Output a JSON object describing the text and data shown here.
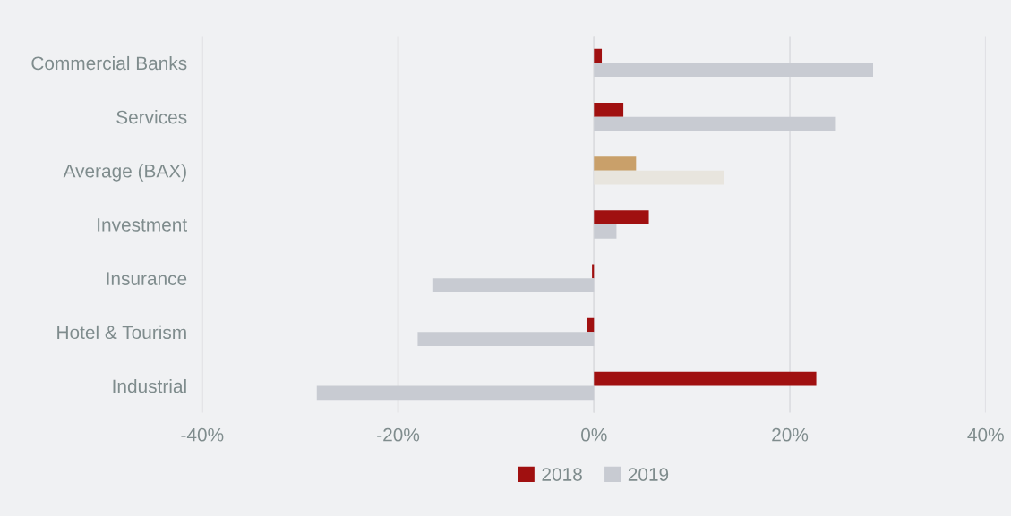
{
  "chart_data": {
    "type": "bar",
    "orientation": "horizontal",
    "categories": [
      "Commercial Banks",
      "Services",
      "Average (BAX)",
      "Investment",
      "Insurance",
      "Hotel & Tourism",
      "Industrial"
    ],
    "series": [
      {
        "name": "2018",
        "color": "#a01010",
        "colors": [
          "#a01010",
          "#a01010",
          "#c9a06a",
          "#a01010",
          "#a01010",
          "#a01010",
          "#a01010"
        ],
        "values": [
          0.8,
          3.0,
          4.3,
          5.6,
          -0.2,
          -0.7,
          22.7
        ]
      },
      {
        "name": "2019",
        "color": "#c8cbd2",
        "colors": [
          "#c8cbd2",
          "#c8cbd2",
          "#e8e5de",
          "#c8cbd2",
          "#c8cbd2",
          "#c8cbd2",
          "#c8cbd2"
        ],
        "values": [
          28.5,
          24.7,
          13.3,
          2.3,
          -16.5,
          -18.0,
          -28.3
        ]
      }
    ],
    "xlim": [
      -40,
      40
    ],
    "xticks": [
      {
        "value": -40,
        "label": "-40%"
      },
      {
        "value": -20,
        "label": "-20%"
      },
      {
        "value": 0,
        "label": "0%"
      },
      {
        "value": 20,
        "label": "20%"
      },
      {
        "value": 40,
        "label": "40%"
      }
    ],
    "grid": "x",
    "legend": "bottom"
  }
}
